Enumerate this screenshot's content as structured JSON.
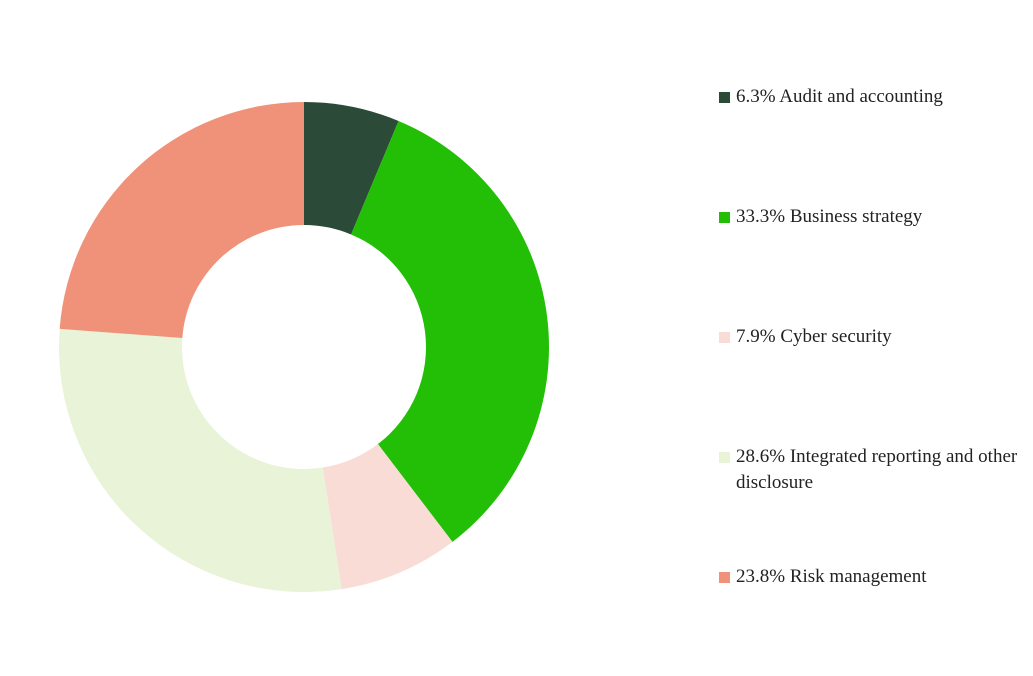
{
  "chart_data": {
    "type": "donut",
    "categories": [
      "Audit and accounting",
      "Business strategy",
      "Cyber security",
      "Integrated reporting and other disclosure",
      "Risk management"
    ],
    "values": [
      6.3,
      33.3,
      7.9,
      28.6,
      23.8
    ],
    "value_labels": [
      "6.3%",
      "33.3%",
      "7.9%",
      "28.6%",
      "23.8%"
    ],
    "colors": [
      "#2b4a37",
      "#22bf06",
      "#f9dcd6",
      "#e8f3d8",
      "#f0927a"
    ],
    "legend": "right"
  }
}
